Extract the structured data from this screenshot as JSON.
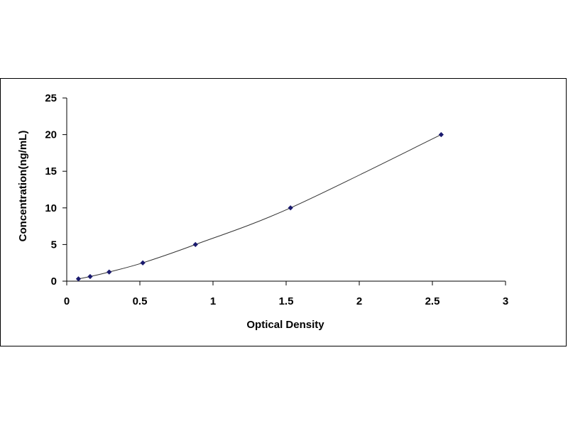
{
  "chart_data": {
    "type": "scatter",
    "title": "",
    "xlabel": "Optical Density",
    "ylabel": "Concentration(ng/mL)",
    "xlim": [
      0,
      3
    ],
    "ylim": [
      0,
      25
    ],
    "x_ticks": [
      "0",
      "0.5",
      "1",
      "1.5",
      "2",
      "2.5",
      "3"
    ],
    "y_ticks": [
      "0",
      "5",
      "10",
      "15",
      "20",
      "25"
    ],
    "grid": false,
    "legend": "none",
    "colors": {
      "point": "#1a1a6e",
      "curve": "#333333",
      "axis": "#000000"
    },
    "series": [
      {
        "points": [
          {
            "x": 0.08,
            "y": 0.31
          },
          {
            "x": 0.16,
            "y": 0.63
          },
          {
            "x": 0.29,
            "y": 1.25
          },
          {
            "x": 0.52,
            "y": 2.5
          },
          {
            "x": 0.88,
            "y": 5
          },
          {
            "x": 1.53,
            "y": 10
          },
          {
            "x": 2.56,
            "y": 20
          }
        ]
      }
    ]
  }
}
